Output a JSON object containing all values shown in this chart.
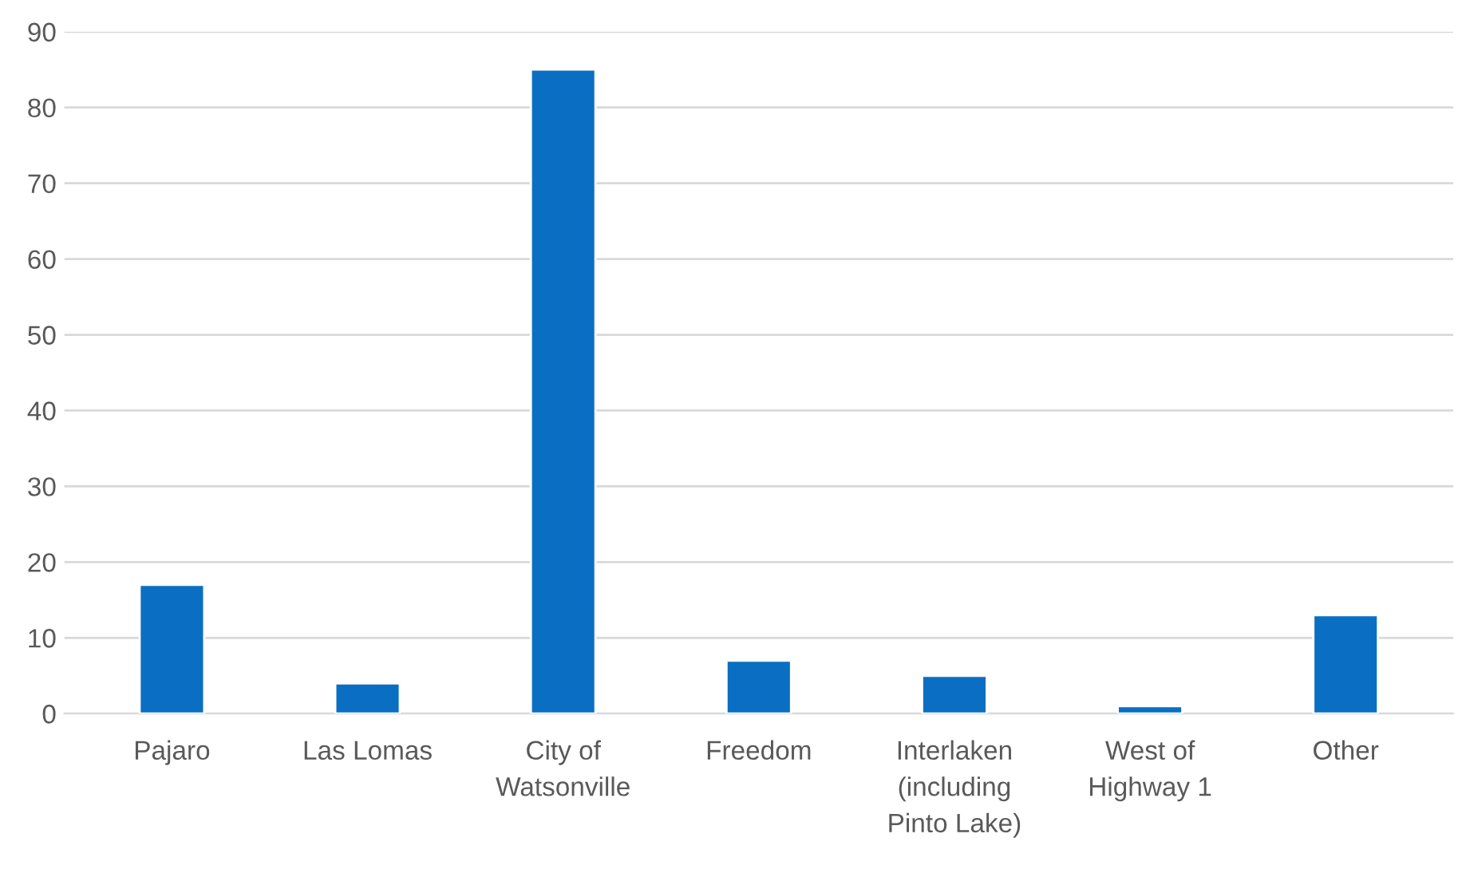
{
  "chart_data": {
    "type": "bar",
    "categories": [
      "Pajaro",
      "Las Lomas",
      "City of\nWatsonville",
      "Freedom",
      "Interlaken\n(including\nPinto Lake)",
      "West of\nHighway 1",
      "Other"
    ],
    "values": [
      17,
      4,
      85,
      7,
      5,
      1,
      13
    ],
    "color": "#0a6fc2",
    "ylim": [
      0,
      90
    ],
    "yticks": [
      0,
      10,
      20,
      30,
      40,
      50,
      60,
      70,
      80,
      90
    ],
    "grid": "y",
    "legend": false
  }
}
